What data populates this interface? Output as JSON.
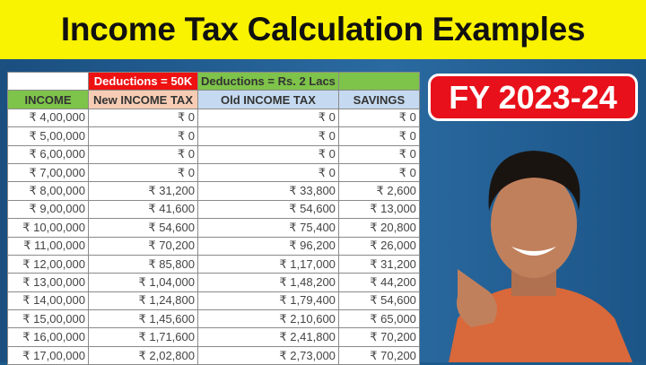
{
  "title": "Income Tax Calculation Examples",
  "badge": "FY 2023-24",
  "table": {
    "group_headers": [
      "",
      "Deductions = 50K",
      "Deductions = Rs. 2 Lacs",
      ""
    ],
    "group_colors": [
      "#ffffff",
      "#ee1111",
      "#7ec34a",
      "#7ec34a"
    ],
    "headers": [
      "INCOME",
      "New INCOME TAX",
      "Old INCOME TAX",
      "SAVINGS"
    ],
    "header_colors": [
      "#7ec34a",
      "#f6cdb4",
      "#c5daf0",
      "#c5daf0"
    ],
    "rows": [
      [
        "₹ 4,00,000",
        "₹ 0",
        "₹ 0",
        "₹ 0"
      ],
      [
        "₹ 5,00,000",
        "₹ 0",
        "₹ 0",
        "₹ 0"
      ],
      [
        "₹ 6,00,000",
        "₹ 0",
        "₹ 0",
        "₹ 0"
      ],
      [
        "₹ 7,00,000",
        "₹ 0",
        "₹ 0",
        "₹ 0"
      ],
      [
        "₹ 8,00,000",
        "₹ 31,200",
        "₹ 33,800",
        "₹ 2,600"
      ],
      [
        "₹ 9,00,000",
        "₹ 41,600",
        "₹ 54,600",
        "₹ 13,000"
      ],
      [
        "₹ 10,00,000",
        "₹ 54,600",
        "₹ 75,400",
        "₹ 20,800"
      ],
      [
        "₹ 11,00,000",
        "₹ 70,200",
        "₹ 96,200",
        "₹ 26,000"
      ],
      [
        "₹ 12,00,000",
        "₹ 85,800",
        "₹ 1,17,000",
        "₹ 31,200"
      ],
      [
        "₹ 13,00,000",
        "₹ 1,04,000",
        "₹ 1,48,200",
        "₹ 44,200"
      ],
      [
        "₹ 14,00,000",
        "₹ 1,24,800",
        "₹ 1,79,400",
        "₹ 54,600"
      ],
      [
        "₹ 15,00,000",
        "₹ 1,45,600",
        "₹ 2,10,600",
        "₹ 65,000"
      ],
      [
        "₹ 16,00,000",
        "₹ 1,71,600",
        "₹ 2,41,800",
        "₹ 70,200"
      ],
      [
        "₹ 17,00,000",
        "₹ 2,02,800",
        "₹ 2,73,000",
        "₹ 70,200"
      ]
    ]
  }
}
